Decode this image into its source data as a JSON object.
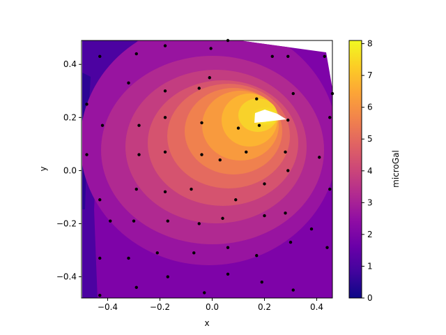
{
  "chart_data": {
    "type": "contour",
    "xlabel": "x",
    "ylabel": "y",
    "xlim": [
      -0.5,
      0.46
    ],
    "ylim": [
      -0.48,
      0.49
    ],
    "xticks": [
      -0.4,
      -0.2,
      0.0,
      0.2,
      0.4
    ],
    "xtick_labels": [
      "−0.4",
      "−0.2",
      "0.0",
      "0.2",
      "0.4"
    ],
    "yticks": [
      -0.4,
      -0.2,
      0.0,
      0.2,
      0.4
    ],
    "ytick_labels": [
      "−0.4",
      "−0.2",
      "0.0",
      "0.2",
      "0.4"
    ],
    "colormap": "plasma",
    "colorbar": {
      "label": "microGal",
      "min": 0,
      "max": 8.1,
      "ticks": [
        0,
        1,
        2,
        3,
        4,
        5,
        6,
        7,
        8
      ],
      "tick_labels": [
        "0",
        "1",
        "2",
        "3",
        "4",
        "5",
        "6",
        "7",
        "8"
      ]
    },
    "field_peak": {
      "x": 0.2,
      "y": 0.18,
      "value": 8.1
    },
    "sample_points": [
      [
        -0.43,
        0.43
      ],
      [
        -0.29,
        0.44
      ],
      [
        -0.18,
        0.47
      ],
      [
        -0.005,
        0.46
      ],
      [
        0.06,
        0.49
      ],
      [
        0.23,
        0.43
      ],
      [
        0.29,
        0.43
      ],
      [
        0.43,
        0.43
      ],
      [
        -0.32,
        0.33
      ],
      [
        -0.18,
        0.3
      ],
      [
        -0.01,
        0.35
      ],
      [
        -0.05,
        0.31
      ],
      [
        0.31,
        0.29
      ],
      [
        0.46,
        0.29
      ],
      [
        0.17,
        0.27
      ],
      [
        -0.48,
        0.25
      ],
      [
        0.18,
        0.17
      ],
      [
        0.29,
        0.19
      ],
      [
        0.45,
        0.2
      ],
      [
        -0.42,
        0.17
      ],
      [
        -0.28,
        0.17
      ],
      [
        -0.18,
        0.2
      ],
      [
        -0.04,
        0.18
      ],
      [
        0.1,
        0.16
      ],
      [
        -0.48,
        0.06
      ],
      [
        -0.28,
        0.06
      ],
      [
        -0.18,
        0.07
      ],
      [
        -0.04,
        0.06
      ],
      [
        0.03,
        0.04
      ],
      [
        0.13,
        0.07
      ],
      [
        0.28,
        0.07
      ],
      [
        0.41,
        0.05
      ],
      [
        0.29,
        0.0
      ],
      [
        -0.29,
        -0.07
      ],
      [
        -0.18,
        -0.08
      ],
      [
        -0.08,
        -0.07
      ],
      [
        0.2,
        -0.05
      ],
      [
        0.45,
        -0.07
      ],
      [
        -0.43,
        -0.11
      ],
      [
        0.09,
        -0.11
      ],
      [
        -0.39,
        -0.19
      ],
      [
        -0.3,
        -0.19
      ],
      [
        -0.17,
        -0.19
      ],
      [
        -0.05,
        -0.2
      ],
      [
        0.04,
        -0.18
      ],
      [
        0.2,
        -0.17
      ],
      [
        0.28,
        -0.16
      ],
      [
        0.38,
        -0.22
      ],
      [
        -0.21,
        -0.31
      ],
      [
        -0.07,
        -0.31
      ],
      [
        0.06,
        -0.29
      ],
      [
        0.17,
        -0.32
      ],
      [
        0.3,
        -0.27
      ],
      [
        0.44,
        -0.29
      ],
      [
        -0.43,
        -0.33
      ],
      [
        -0.32,
        -0.33
      ],
      [
        0.06,
        -0.39
      ],
      [
        -0.17,
        -0.4
      ],
      [
        -0.29,
        -0.44
      ],
      [
        0.19,
        -0.42
      ],
      [
        0.31,
        -0.45
      ],
      [
        -0.43,
        -0.47
      ],
      [
        -0.03,
        -0.46
      ]
    ]
  }
}
